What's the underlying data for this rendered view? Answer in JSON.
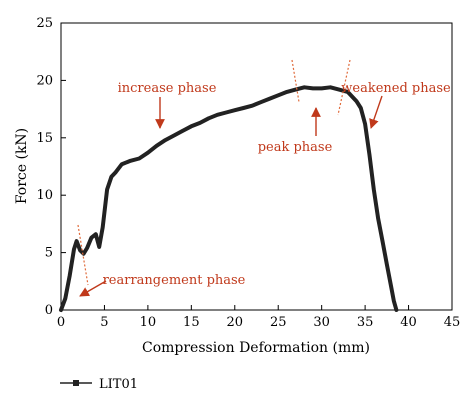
{
  "chart_data": {
    "type": "line",
    "title": "",
    "xlabel": "Compression Deformation (mm)",
    "ylabel": "Force (kN)",
    "xlim": [
      0,
      45
    ],
    "ylim": [
      0,
      25
    ],
    "xticks": [
      0,
      5,
      10,
      15,
      20,
      25,
      30,
      35,
      40,
      45
    ],
    "yticks": [
      0,
      5,
      10,
      15,
      20,
      25
    ],
    "grid": false,
    "legend": {
      "position": "bottom-left",
      "entries": [
        "LIT01"
      ]
    },
    "series": [
      {
        "name": "LIT01",
        "color": "#222222",
        "x": [
          0,
          0.5,
          1.0,
          1.5,
          1.8,
          2.2,
          2.6,
          3.0,
          3.5,
          4.0,
          4.4,
          4.8,
          5.3,
          5.8,
          6.3,
          7.0,
          8.0,
          9.0,
          10.0,
          11.0,
          12.0,
          13.0,
          14.0,
          15.0,
          16.0,
          17.0,
          18.0,
          19.0,
          20.0,
          21.0,
          22.0,
          23.0,
          24.0,
          25.0,
          26.0,
          27.0,
          28.0,
          29.0,
          30.0,
          31.0,
          32.0,
          33.0,
          34.0,
          34.5,
          35.0,
          35.5,
          36.0,
          36.5,
          37.0,
          37.5,
          38.0,
          38.3,
          38.6
        ],
        "y": [
          0,
          1.0,
          3.0,
          5.3,
          6.0,
          5.2,
          4.9,
          5.4,
          6.3,
          6.6,
          5.5,
          7.2,
          10.5,
          11.6,
          12.0,
          12.7,
          13.0,
          13.2,
          13.7,
          14.3,
          14.8,
          15.2,
          15.6,
          16.0,
          16.3,
          16.7,
          17.0,
          17.2,
          17.4,
          17.6,
          17.8,
          18.1,
          18.4,
          18.7,
          19.0,
          19.2,
          19.4,
          19.3,
          19.3,
          19.4,
          19.2,
          19.0,
          18.2,
          17.6,
          16.2,
          13.5,
          10.5,
          8.0,
          6.0,
          4.0,
          2.0,
          0.8,
          0.0
        ]
      }
    ],
    "annotations": [
      {
        "text": "increase phase",
        "color": "#c0391b"
      },
      {
        "text": "peak phase",
        "color": "#c0391b"
      },
      {
        "text": "weakened phase",
        "color": "#c0391b"
      },
      {
        "text": "rearrangement phase",
        "color": "#c0391b"
      }
    ]
  }
}
